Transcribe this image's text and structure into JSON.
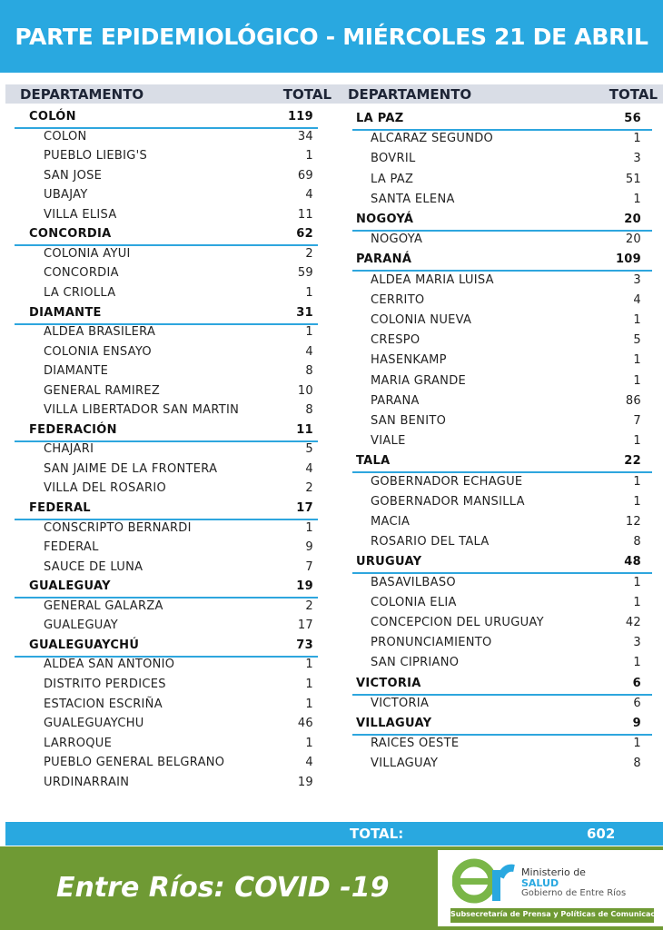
{
  "header": {
    "title": "PARTE EPIDEMIOLÓGICO - MIÉRCOLES 21 DE ABRIL"
  },
  "columns": [
    {
      "headers": {
        "department": "DEPARTAMENTO",
        "total": "TOTAL"
      },
      "groups": [
        {
          "name": "COLÓN",
          "total": 119,
          "localities": [
            {
              "name": "COLON",
              "total": 34
            },
            {
              "name": "PUEBLO LIEBIG'S",
              "total": 1
            },
            {
              "name": "SAN JOSE",
              "total": 69
            },
            {
              "name": "UBAJAY",
              "total": 4
            },
            {
              "name": "VILLA ELISA",
              "total": 11
            }
          ]
        },
        {
          "name": "CONCORDIA",
          "total": 62,
          "localities": [
            {
              "name": "COLONIA AYUI",
              "total": 2
            },
            {
              "name": "CONCORDIA",
              "total": 59
            },
            {
              "name": "LA CRIOLLA",
              "total": 1
            }
          ]
        },
        {
          "name": "DIAMANTE",
          "total": 31,
          "localities": [
            {
              "name": "ALDEA BRASILERA",
              "total": 1
            },
            {
              "name": "COLONIA ENSAYO",
              "total": 4
            },
            {
              "name": "DIAMANTE",
              "total": 8
            },
            {
              "name": "GENERAL RAMIREZ",
              "total": 10
            },
            {
              "name": "VILLA LIBERTADOR SAN MARTIN",
              "total": 8
            }
          ]
        },
        {
          "name": "FEDERACIÓN",
          "total": 11,
          "localities": [
            {
              "name": "CHAJARI",
              "total": 5
            },
            {
              "name": "SAN JAIME DE LA FRONTERA",
              "total": 4
            },
            {
              "name": "VILLA DEL ROSARIO",
              "total": 2
            }
          ]
        },
        {
          "name": "FEDERAL",
          "total": 17,
          "localities": [
            {
              "name": "CONSCRIPTO BERNARDI",
              "total": 1
            },
            {
              "name": "FEDERAL",
              "total": 9
            },
            {
              "name": "SAUCE DE LUNA",
              "total": 7
            }
          ]
        },
        {
          "name": "GUALEGUAY",
          "total": 19,
          "localities": [
            {
              "name": "GENERAL GALARZA",
              "total": 2
            },
            {
              "name": "GUALEGUAY",
              "total": 17
            }
          ]
        },
        {
          "name": "GUALEGUAYCHÚ",
          "total": 73,
          "localities": [
            {
              "name": "ALDEA SAN ANTONIO",
              "total": 1
            },
            {
              "name": "DISTRITO PERDICES",
              "total": 1
            },
            {
              "name": "ESTACION ESCRIÑA",
              "total": 1
            },
            {
              "name": "GUALEGUAYCHU",
              "total": 46
            },
            {
              "name": "LARROQUE",
              "total": 1
            },
            {
              "name": "PUEBLO GENERAL BELGRANO",
              "total": 4
            },
            {
              "name": "URDINARRAIN",
              "total": 19
            }
          ]
        }
      ]
    },
    {
      "headers": {
        "department": "DEPARTAMENTO",
        "total": "TOTAL"
      },
      "groups": [
        {
          "name": "LA PAZ",
          "total": 56,
          "localities": [
            {
              "name": "ALCARAZ SEGUNDO",
              "total": 1
            },
            {
              "name": "BOVRIL",
              "total": 3
            },
            {
              "name": "LA PAZ",
              "total": 51
            },
            {
              "name": "SANTA ELENA",
              "total": 1
            }
          ]
        },
        {
          "name": "NOGOYÁ",
          "total": 20,
          "localities": [
            {
              "name": "NOGOYA",
              "total": 20
            }
          ]
        },
        {
          "name": "PARANÁ",
          "total": 109,
          "localities": [
            {
              "name": "ALDEA MARIA LUISA",
              "total": 3
            },
            {
              "name": "CERRITO",
              "total": 4
            },
            {
              "name": "COLONIA NUEVA",
              "total": 1
            },
            {
              "name": "CRESPO",
              "total": 5
            },
            {
              "name": "HASENKAMP",
              "total": 1
            },
            {
              "name": "MARIA GRANDE",
              "total": 1
            },
            {
              "name": "PARANA",
              "total": 86
            },
            {
              "name": "SAN BENITO",
              "total": 7
            },
            {
              "name": "VIALE",
              "total": 1
            }
          ]
        },
        {
          "name": "TALA",
          "total": 22,
          "localities": [
            {
              "name": "GOBERNADOR ECHAGUE",
              "total": 1
            },
            {
              "name": "GOBERNADOR MANSILLA",
              "total": 1
            },
            {
              "name": "MACIA",
              "total": 12
            },
            {
              "name": "ROSARIO DEL TALA",
              "total": 8
            }
          ]
        },
        {
          "name": "URUGUAY",
          "total": 48,
          "localities": [
            {
              "name": "BASAVILBASO",
              "total": 1
            },
            {
              "name": "COLONIA ELIA",
              "total": 1
            },
            {
              "name": "CONCEPCION DEL URUGUAY",
              "total": 42
            },
            {
              "name": "PRONUNCIAMIENTO",
              "total": 3
            },
            {
              "name": "SAN CIPRIANO",
              "total": 1
            }
          ]
        },
        {
          "name": "VICTORIA",
          "total": 6,
          "localities": [
            {
              "name": "VICTORIA",
              "total": 6
            }
          ]
        },
        {
          "name": "VILLAGUAY",
          "total": 9,
          "localities": [
            {
              "name": "RAICES OESTE",
              "total": 1
            },
            {
              "name": "VILLAGUAY",
              "total": 8
            }
          ]
        }
      ]
    }
  ],
  "summary": {
    "label": "TOTAL:",
    "total": 602
  },
  "footer": {
    "tagline": "Entre Ríos: COVID -19",
    "logo": {
      "line1": "Ministerio de",
      "line2": "SALUD",
      "line3": "Gobierno de Entre Ríos",
      "strip": "Subsecretaría de Prensa y Políticas de Comunicación"
    }
  }
}
